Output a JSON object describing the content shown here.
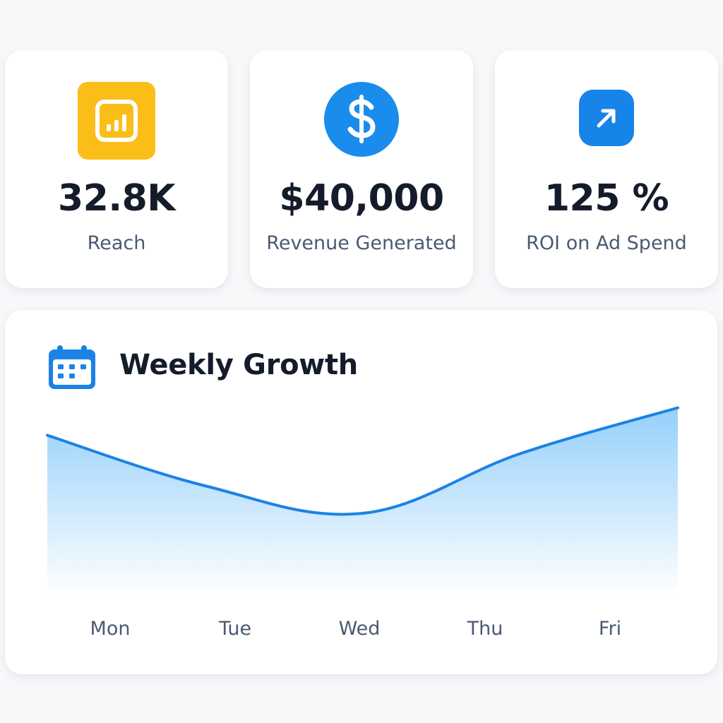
{
  "stats": [
    {
      "value": "32.8K",
      "label": "Reach",
      "icon": "bar-chart-icon",
      "color": "#fbbd17"
    },
    {
      "value": "$40,000",
      "label": "Revenue Generated",
      "icon": "dollar-icon",
      "color": "#1a8cec"
    },
    {
      "value": "125 %",
      "label": "ROI on Ad Spend",
      "icon": "arrow-up-right-icon",
      "color": "#1684e8"
    }
  ],
  "growth": {
    "title": "Weekly Growth",
    "icon": "calendar-icon",
    "color": "#1b82e6",
    "fill_color": "#8fcdfb"
  },
  "chart_data": {
    "type": "area",
    "title": "Weekly Growth",
    "categories": [
      "Mon",
      "Tue",
      "Wed",
      "Thu",
      "Fri"
    ],
    "x_tick_labels": [
      "Mon",
      "Tue",
      "Wed",
      "Thu",
      "Fri"
    ],
    "values": [
      70,
      48,
      36,
      62,
      82
    ],
    "ylim": [
      0,
      100
    ],
    "grid": false,
    "xlabel": "",
    "ylabel": ""
  }
}
